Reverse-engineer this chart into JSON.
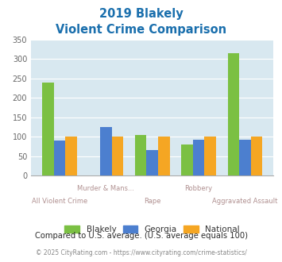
{
  "title_line1": "2019 Blakely",
  "title_line2": "Violent Crime Comparison",
  "categories": [
    "All Violent Crime",
    "Murder & Mans...",
    "Rape",
    "Robbery",
    "Aggravated Assault"
  ],
  "blakely": [
    238,
    0,
    104,
    80,
    315
  ],
  "georgia": [
    90,
    125,
    65,
    93,
    93
  ],
  "national": [
    100,
    100,
    100,
    100,
    100
  ],
  "blakely_color": "#7bc043",
  "georgia_color": "#4c7fcf",
  "national_color": "#f5a623",
  "ylim": [
    0,
    350
  ],
  "yticks": [
    0,
    50,
    100,
    150,
    200,
    250,
    300,
    350
  ],
  "bg_color": "#d8e8f0",
  "title_color": "#1a6fad",
  "xlabel_upper_color": "#b09090",
  "xlabel_lower_color": "#b09090",
  "footer_text": "Compared to U.S. average. (U.S. average equals 100)",
  "footer_color": "#2b2b2b",
  "copyright_text_prefix": "© 2025 CityRating.com - ",
  "copyright_url": "https://www.cityrating.com/crime-statistics/",
  "copyright_color": "#888888",
  "copyright_url_color": "#4472c4"
}
